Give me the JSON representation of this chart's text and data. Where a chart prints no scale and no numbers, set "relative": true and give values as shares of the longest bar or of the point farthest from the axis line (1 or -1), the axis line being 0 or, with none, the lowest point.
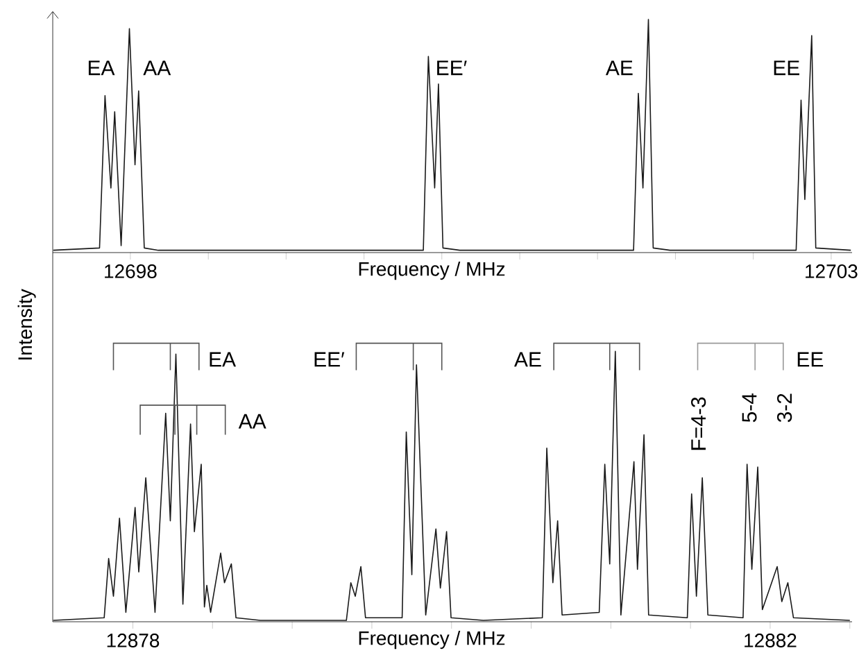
{
  "chart_data": [
    {
      "type": "line",
      "relative": true,
      "marker": "none",
      "line_style": "solid",
      "xlabel": "Frequency / MHz",
      "ylabel": "Intensity",
      "xlim": [
        12697.446,
        12703.149
      ],
      "xticks": [
        12698,
        {
          "value": 12698.556,
          "label": null
        },
        {
          "value": 12699.111,
          "label": null
        },
        {
          "value": 12699.667,
          "label": null
        },
        {
          "value": 12700.222,
          "label": null
        },
        {
          "value": 12700.778,
          "label": null
        },
        {
          "value": 12701.333,
          "label": null
        },
        {
          "value": 12701.889,
          "label": null
        },
        {
          "value": 12702.444,
          "label": null
        },
        12703
      ],
      "annotations": [
        "EA",
        "AA",
        "EE′",
        "AE",
        "EE"
      ],
      "series": [
        {
          "color": "#1a1a1a",
          "x": [
            12697.45,
            12697.78,
            12697.819,
            12697.861,
            12697.888,
            12697.934,
            12697.993,
            12698.033,
            12698.059,
            12698.099,
            12698.2,
            12700.09,
            12700.126,
            12700.171,
            12700.198,
            12700.23,
            12700.35,
            12701.59,
            12701.624,
            12701.657,
            12701.696,
            12701.73,
            12701.85,
            12702.75,
            12702.785,
            12702.812,
            12702.861,
            12702.89,
            12703.14
          ],
          "values": [
            0,
            0.01,
            0.67,
            0.27,
            0.6,
            0.02,
            0.96,
            0.37,
            0.69,
            0.01,
            0,
            0,
            0.84,
            0.27,
            0.72,
            0.01,
            0,
            0,
            0.68,
            0.27,
            1.0,
            0.01,
            0,
            0,
            0.65,
            0.22,
            0.93,
            0.01,
            0
          ]
        }
      ]
    },
    {
      "type": "line",
      "relative": true,
      "marker": "none",
      "line_style": "solid",
      "xlabel": "Frequency / MHz",
      "xlim": [
        12877.497,
        12882.514
      ],
      "xticks": [
        12878,
        {
          "value": 12878.5,
          "label": null
        },
        {
          "value": 12879,
          "label": null
        },
        {
          "value": 12879.5,
          "label": null
        },
        {
          "value": 12880,
          "label": null
        },
        {
          "value": 12880.5,
          "label": null
        },
        {
          "value": 12881,
          "label": null
        },
        {
          "value": 12881.5,
          "label": null
        },
        12882,
        {
          "value": 12882.5,
          "label": null
        }
      ],
      "annotations": [
        "EA",
        "AA",
        "EE′",
        "AE",
        "EE",
        "F=4-3",
        "5-4",
        "3-2"
      ],
      "series": [
        {
          "color": "#1a1a1a",
          "x": [
            12877.5,
            12877.82,
            12877.848,
            12877.878,
            12877.916,
            12877.956,
            12878.014,
            12878.037,
            12878.081,
            12878.139,
            12878.206,
            12878.235,
            12878.27,
            12878.314,
            12878.362,
            12878.386,
            12878.429,
            12878.449,
            12878.464,
            12878.488,
            12878.551,
            12878.575,
            12878.618,
            12878.647,
            12878.8,
            12879.34,
            12879.368,
            12879.396,
            12879.431,
            12879.46,
            12879.69,
            12879.716,
            12879.751,
            12879.78,
            12879.838,
            12879.902,
            12879.93,
            12879.969,
            12879.997,
            12880.2,
            12880.57,
            12880.598,
            12880.636,
            12880.666,
            12880.694,
            12880.927,
            12880.962,
            12880.993,
            12881.028,
            12881.063,
            12881.145,
            12881.167,
            12881.208,
            12881.237,
            12881.48,
            12881.507,
            12881.537,
            12881.574,
            12881.609,
            12881.83,
            12881.855,
            12881.885,
            12881.922,
            12881.951,
            12882.044,
            12882.073,
            12882.111,
            12882.146,
            12882.5
          ],
          "values": [
            0,
            0.01,
            0.23,
            0.09,
            0.38,
            0.03,
            0.42,
            0.18,
            0.53,
            0.03,
            0.77,
            0.37,
            0.99,
            0.06,
            0.73,
            0.33,
            0.58,
            0.05,
            0.13,
            0.03,
            0.25,
            0.14,
            0.21,
            0.01,
            0,
            0,
            0.14,
            0.09,
            0.2,
            0.01,
            0.01,
            0.7,
            0.17,
            0.95,
            0.02,
            0.34,
            0.12,
            0.33,
            0.01,
            0,
            0.01,
            0.64,
            0.14,
            0.37,
            0.02,
            0.03,
            0.58,
            0.21,
            1.0,
            0.02,
            0.59,
            0.19,
            0.69,
            0.02,
            0.01,
            0.47,
            0.09,
            0.53,
            0.02,
            0.01,
            0.58,
            0.19,
            0.57,
            0.04,
            0.2,
            0.07,
            0.14,
            0.01,
            0
          ]
        }
      ]
    }
  ]
}
